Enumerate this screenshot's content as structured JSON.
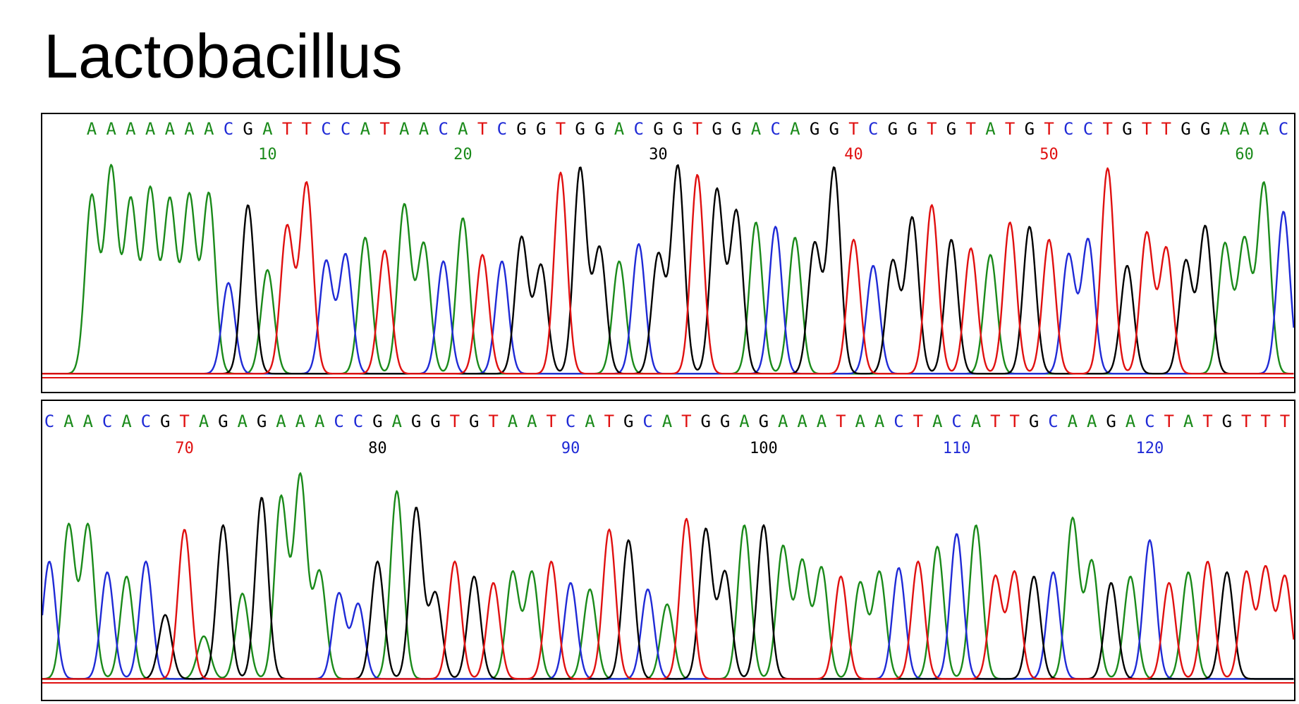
{
  "title": "Lactobacillus",
  "colors": {
    "A": "#1a8a1a",
    "C": "#1f2ad6",
    "G": "#000000",
    "T": "#e01010"
  },
  "chart_data": [
    {
      "type": "line",
      "chart": "DNA sequencing chromatogram",
      "sequence": "AAAAAAACGATTCCATAACATCGGTGGACGGTGGACAGGTCGGTGTATGTCCTGTTGGAAAC",
      "x_range": [
        1,
        62
      ],
      "tick_labels": [
        {
          "pos": 10,
          "label": "10",
          "color": "A"
        },
        {
          "pos": 20,
          "label": "20",
          "color": "A"
        },
        {
          "pos": 30,
          "label": "30",
          "color": "G"
        },
        {
          "pos": 40,
          "label": "40",
          "color": "T"
        },
        {
          "pos": 50,
          "label": "50",
          "color": "T"
        },
        {
          "pos": 60,
          "label": "60",
          "color": "A"
        }
      ],
      "series": [
        {
          "base": "A",
          "color": "#1a8a1a"
        },
        {
          "base": "C",
          "color": "#1f2ad6"
        },
        {
          "base": "G",
          "color": "#000000"
        },
        {
          "base": "T",
          "color": "#e01010"
        }
      ],
      "peak_heights": [
        0.82,
        0.95,
        0.8,
        0.85,
        0.8,
        0.82,
        0.83,
        0.42,
        0.78,
        0.48,
        0.68,
        0.88,
        0.52,
        0.55,
        0.63,
        0.57,
        0.78,
        0.6,
        0.52,
        0.72,
        0.55,
        0.52,
        0.63,
        0.5,
        0.93,
        0.95,
        0.58,
        0.52,
        0.6,
        0.55,
        0.96,
        0.92,
        0.85,
        0.75,
        0.7,
        0.68,
        0.63,
        0.6,
        0.95,
        0.62,
        0.5,
        0.52,
        0.72,
        0.78,
        0.62,
        0.58,
        0.55,
        0.7,
        0.68,
        0.62,
        0.55,
        0.62,
        0.95,
        0.5,
        0.65,
        0.58,
        0.52,
        0.68,
        0.6,
        0.62,
        0.88,
        0.75
      ],
      "ylim": [
        0,
        1
      ]
    },
    {
      "type": "line",
      "chart": "DNA sequencing chromatogram",
      "sequence": "CAACACGTAGAGAAACCGAGGTGTAATCATGCATGGAGAAATAACTACATTGCAAGACTATGTTT",
      "x_range": [
        63,
        127
      ],
      "tick_labels": [
        {
          "pos": 70,
          "label": "70",
          "color": "T"
        },
        {
          "pos": 80,
          "label": "80",
          "color": "G"
        },
        {
          "pos": 90,
          "label": "90",
          "color": "C"
        },
        {
          "pos": 100,
          "label": "100",
          "color": "G"
        },
        {
          "pos": 110,
          "label": "110",
          "color": "C"
        },
        {
          "pos": 120,
          "label": "120",
          "color": "C"
        }
      ],
      "series": [
        {
          "base": "A",
          "color": "#1a8a1a"
        },
        {
          "base": "C",
          "color": "#1f2ad6"
        },
        {
          "base": "G",
          "color": "#000000"
        },
        {
          "base": "T",
          "color": "#e01010"
        }
      ],
      "peak_heights": [
        0.55,
        0.72,
        0.72,
        0.5,
        0.48,
        0.55,
        0.3,
        0.7,
        0.2,
        0.72,
        0.4,
        0.85,
        0.85,
        0.95,
        0.5,
        0.4,
        0.35,
        0.55,
        0.88,
        0.8,
        0.4,
        0.55,
        0.48,
        0.45,
        0.5,
        0.5,
        0.55,
        0.45,
        0.42,
        0.7,
        0.65,
        0.42,
        0.35,
        0.75,
        0.7,
        0.5,
        0.72,
        0.72,
        0.62,
        0.55,
        0.52,
        0.48,
        0.45,
        0.5,
        0.52,
        0.55,
        0.62,
        0.68,
        0.72,
        0.48,
        0.5,
        0.48,
        0.5,
        0.75,
        0.55,
        0.45,
        0.48,
        0.65,
        0.45,
        0.5,
        0.55,
        0.5,
        0.5,
        0.52,
        0.48
      ],
      "ylim": [
        0,
        1
      ]
    }
  ]
}
